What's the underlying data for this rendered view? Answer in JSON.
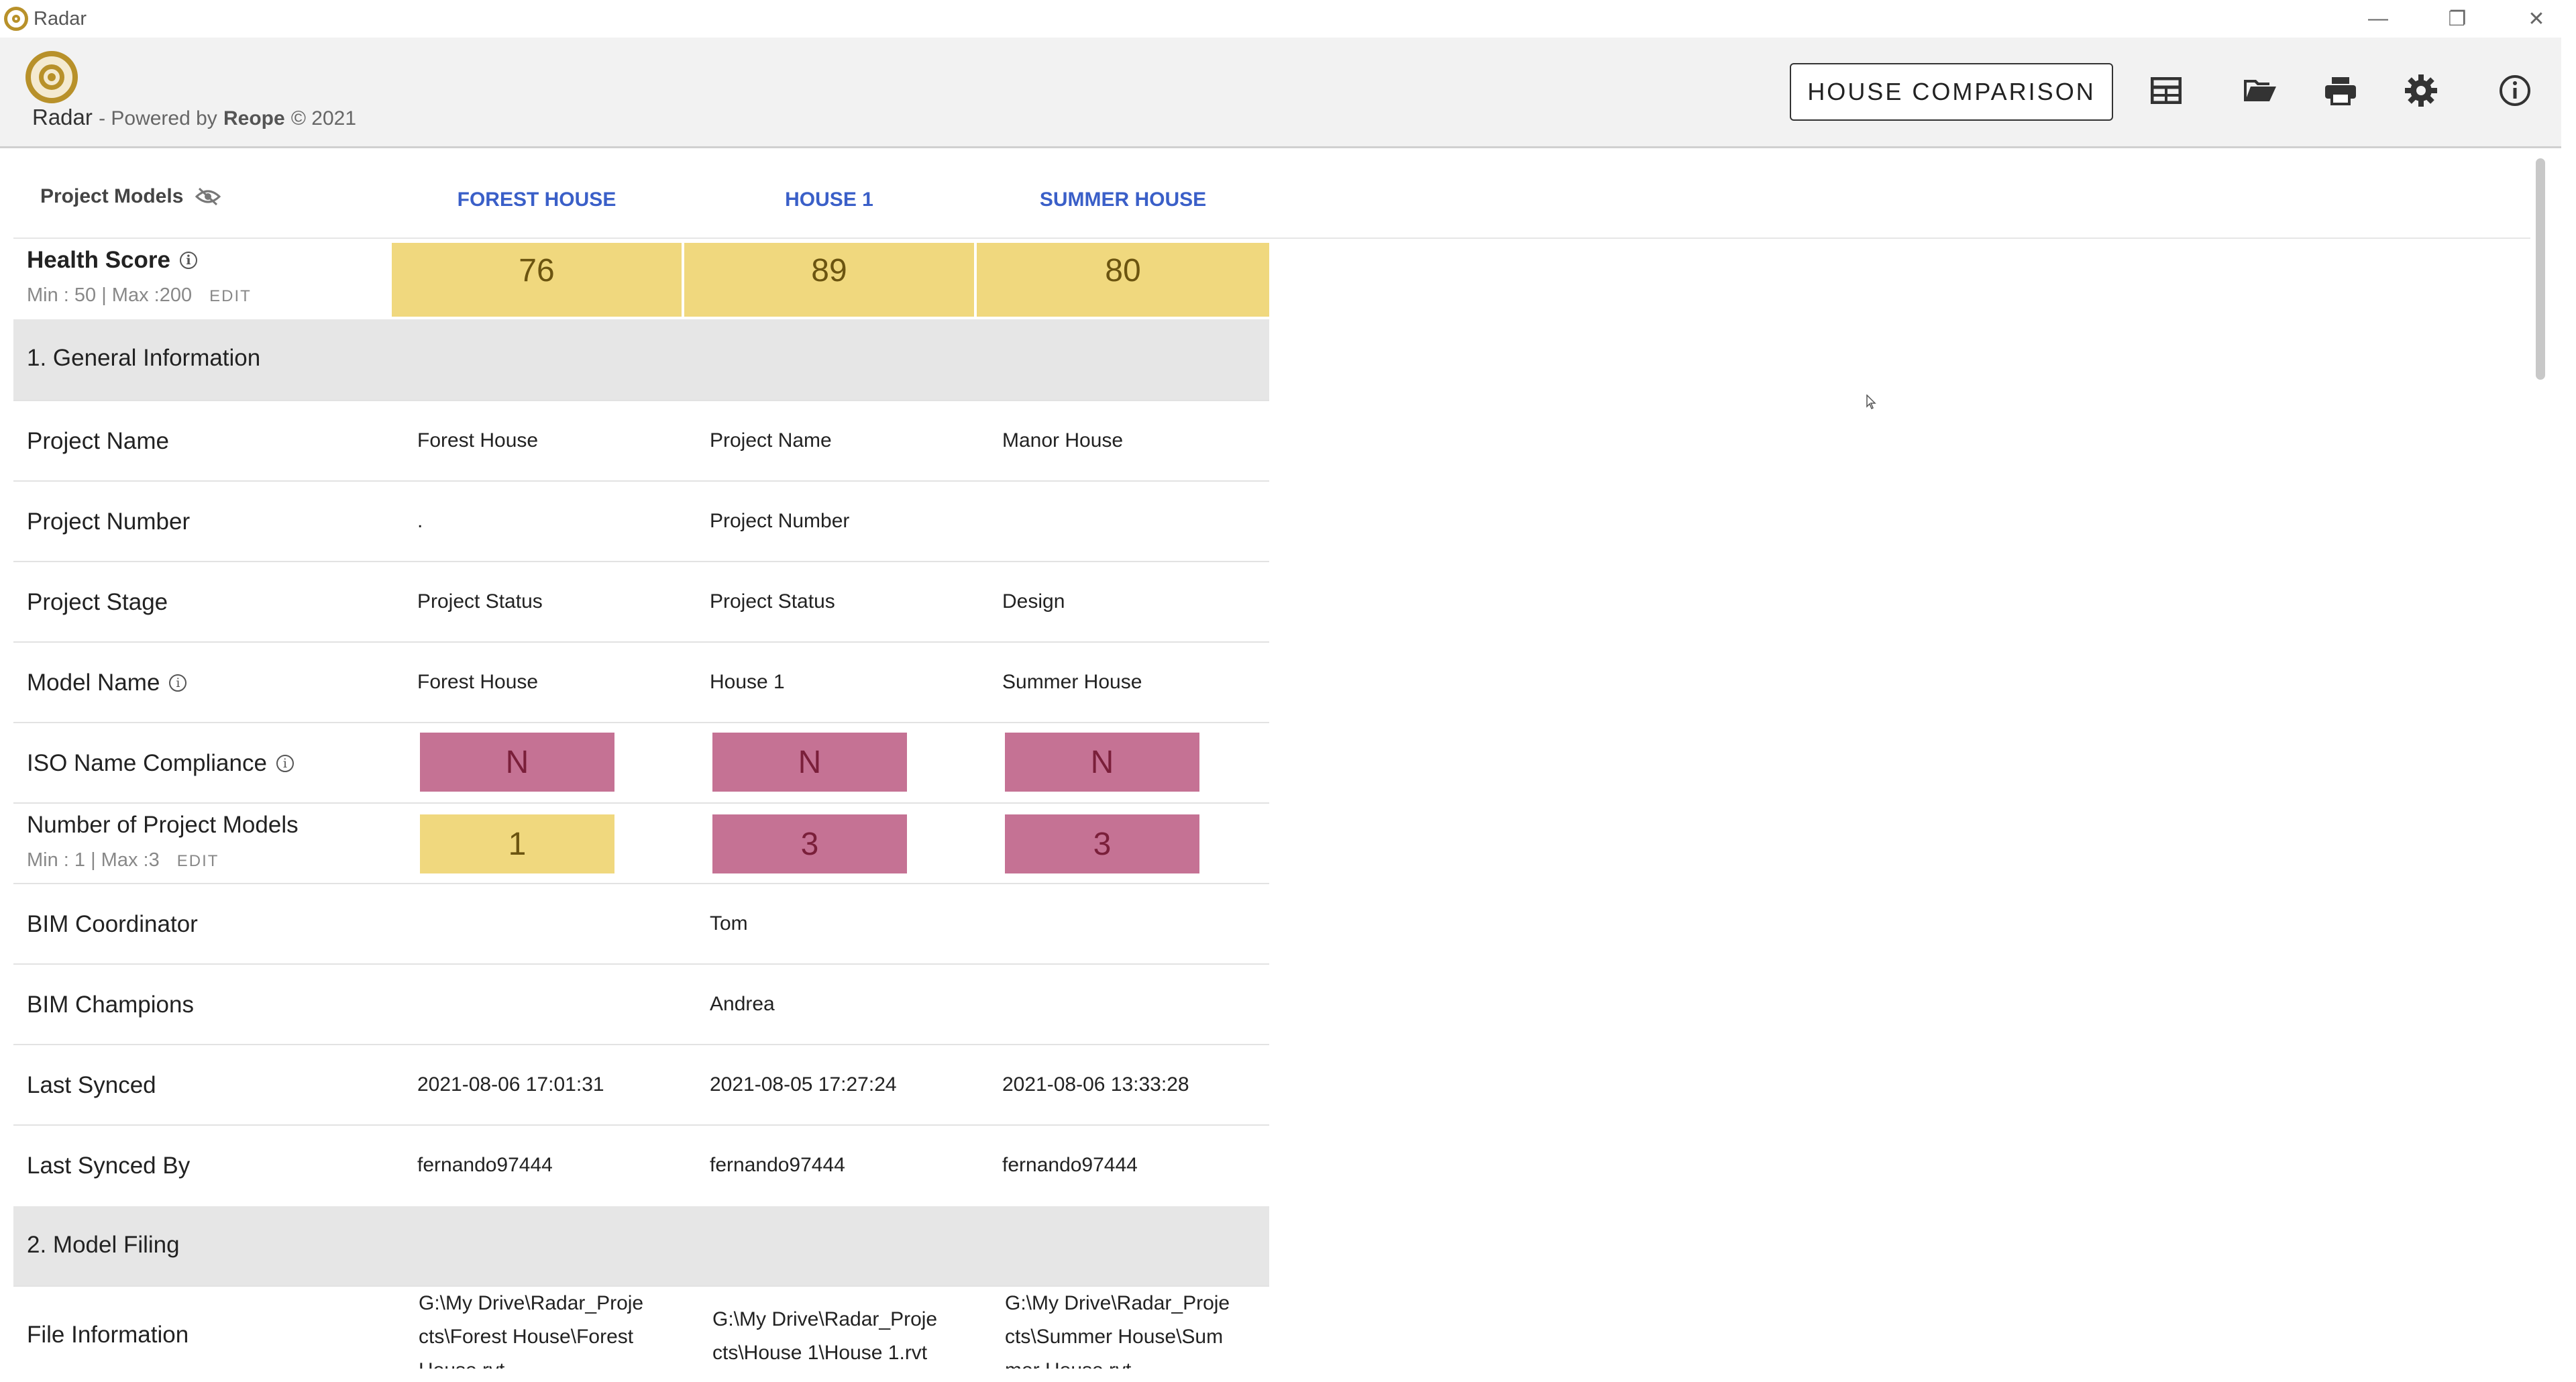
{
  "window": {
    "title": "Radar",
    "controls": [
      "—",
      "❐",
      "✕"
    ]
  },
  "header": {
    "app_name": "Radar",
    "powered_prefix": "- Powered by",
    "powered_company": "Reope",
    "powered_suffix": "© 2021",
    "comparison_button": "HOUSE COMPARISON",
    "icons": [
      "table-icon",
      "folder-open-icon",
      "print-icon",
      "settings-icon",
      "info-icon"
    ]
  },
  "table": {
    "project_models_label": "Project Models",
    "columns": [
      "FOREST HOUSE",
      "HOUSE 1",
      "SUMMER HOUSE"
    ],
    "health": {
      "label": "Health Score",
      "range": "Min : 50 | Max :200",
      "edit": "EDIT",
      "scores": [
        "76",
        "89",
        "80"
      ]
    },
    "sections": {
      "general": "1. General Information",
      "filing": "2. Model Filing"
    },
    "rows": {
      "project_name": {
        "label": "Project Name",
        "values": [
          "Forest House",
          "Project Name",
          "Manor House"
        ]
      },
      "project_number": {
        "label": "Project Number",
        "values": [
          ".",
          "Project Number",
          ""
        ]
      },
      "project_stage": {
        "label": "Project Stage",
        "values": [
          "Project Status",
          "Project Status",
          "Design"
        ]
      },
      "model_name": {
        "label": "Model Name",
        "values": [
          "Forest House",
          "House 1",
          "Summer House"
        ]
      },
      "iso": {
        "label": "ISO Name Compliance",
        "values": [
          "N",
          "N",
          "N"
        ],
        "status": [
          "bad",
          "bad",
          "bad"
        ]
      },
      "num_models": {
        "label": "Number of Project Models",
        "range": "Min : 1 | Max :3",
        "edit": "EDIT",
        "values": [
          "1",
          "3",
          "3"
        ],
        "status": [
          "ok",
          "bad",
          "bad"
        ]
      },
      "bim_coordinator": {
        "label": "BIM Coordinator",
        "values": [
          "",
          "Tom",
          ""
        ]
      },
      "bim_champions": {
        "label": "BIM Champions",
        "values": [
          "",
          "Andrea",
          ""
        ]
      },
      "last_synced": {
        "label": "Last Synced",
        "values": [
          "2021-08-06 17:01:31",
          "2021-08-05 17:27:24",
          "2021-08-06 13:33:28"
        ]
      },
      "last_synced_by": {
        "label": "Last Synced By",
        "values": [
          "fernando97444",
          "fernando97444",
          "fernando97444"
        ]
      },
      "file_info": {
        "label": "File Information",
        "values": [
          "G:\\My Drive\\Radar_Proje\ncts\\Forest House\\Forest\nHouse.rvt",
          "G:\\My Drive\\Radar_Proje\ncts\\House 1\\House 1.rvt",
          "G:\\My Drive\\Radar_Proje\ncts\\Summer House\\Sum\nmer House.rvt"
        ]
      }
    }
  },
  "colors": {
    "score_fill": "#f0d87e",
    "bad_fill": "#c57294",
    "link_blue": "#3a5fc8",
    "brand_gold": "#b8912a"
  }
}
